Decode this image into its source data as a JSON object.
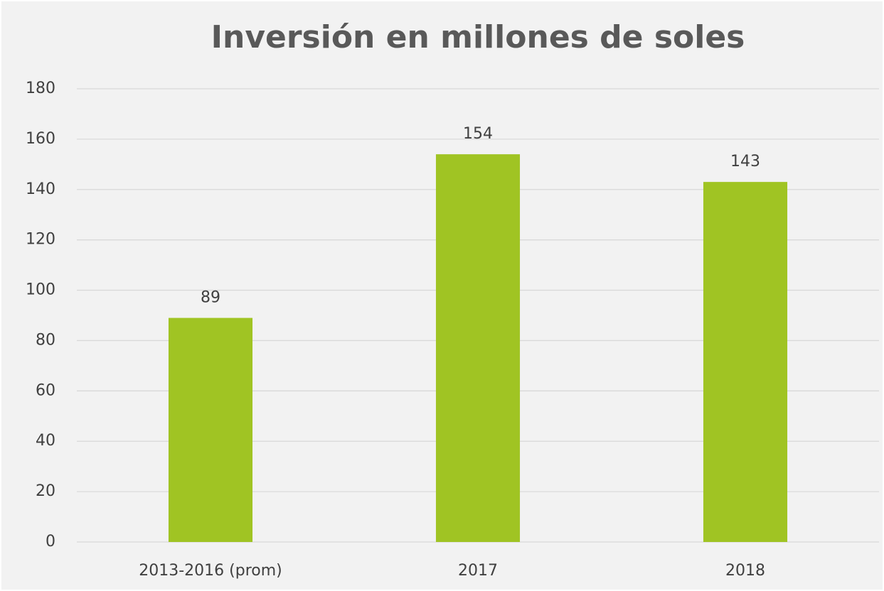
{
  "chart_data": {
    "type": "bar",
    "title": "Inversión en millones de soles",
    "categories": [
      "2013-2016 (prom)",
      "2017",
      "2018"
    ],
    "values": [
      89,
      154,
      143
    ],
    "color": "#a0c423",
    "ylim": [
      0,
      180
    ],
    "yticks": [
      0,
      20,
      40,
      60,
      80,
      100,
      120,
      140,
      160,
      180
    ],
    "grid": true
  }
}
